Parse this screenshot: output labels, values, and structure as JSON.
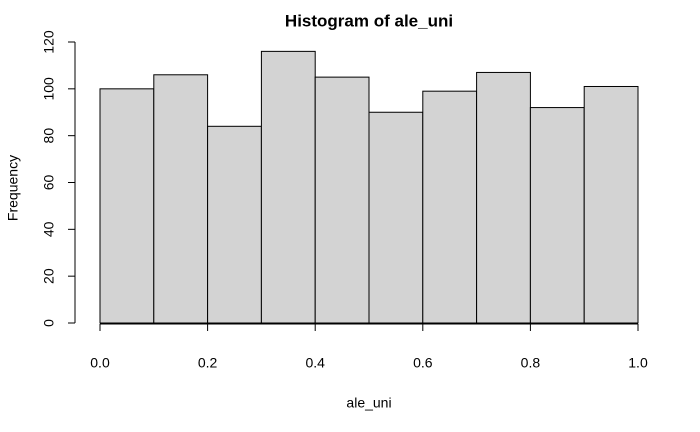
{
  "chart_data": {
    "type": "histogram",
    "title": "Histogram of ale_uni",
    "x_label": "ale_uni",
    "y_label": "Frequency",
    "bins": [
      0,
      0.1,
      0.2,
      0.3,
      0.4,
      0.5,
      0.6,
      0.7,
      0.8,
      0.9,
      1
    ],
    "values": [
      100,
      106,
      84,
      116,
      105,
      90,
      99,
      107,
      92,
      101
    ],
    "color": "#d3d3d3",
    "xlim": [
      0,
      1
    ],
    "xticks": [
      {
        "value": 0,
        "label": "0.0"
      },
      0.2,
      0.4,
      0.6,
      0.8,
      {
        "value": 1,
        "label": "1.0"
      }
    ],
    "ylim": [
      0,
      120
    ],
    "yticks": [
      0,
      20,
      40,
      60,
      80,
      100,
      120
    ]
  }
}
